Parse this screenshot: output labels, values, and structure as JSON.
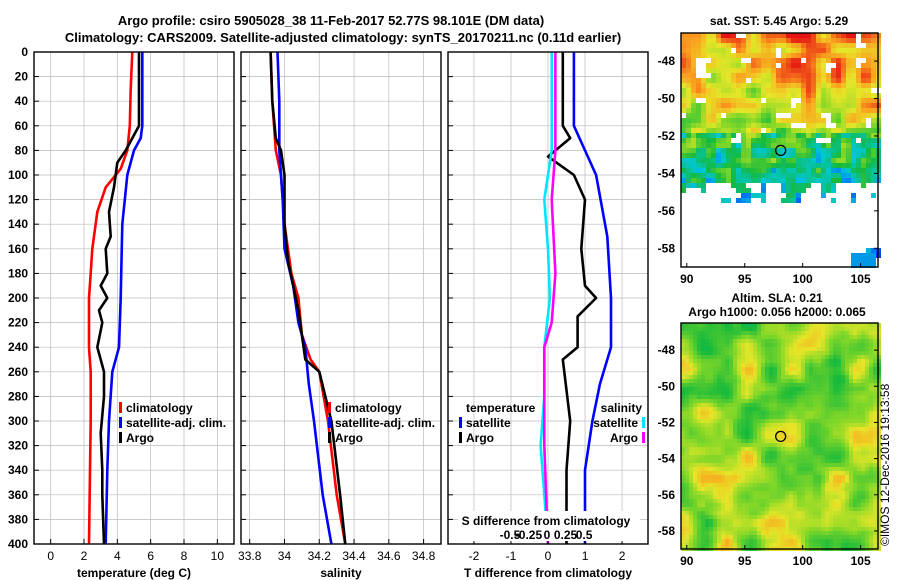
{
  "header": {
    "title_line1": "Argo profile: csiro 5905028_38 11-Feb-2017 52.77S 98.101E (DM data)",
    "title_line2": "Climatology: CARS2009. Satellite-adjusted climatology: synTS_20170211.nc (0.11d earlier)"
  },
  "colors": {
    "climatology": "#ff0000",
    "satellite": "#0000ff",
    "argo": "#000000",
    "salinity_diff": "#00e5ff",
    "temperature_diff": "#ff00ff"
  },
  "chart_data": [
    {
      "type": "line",
      "id": "temperature-panel",
      "xlabel": "temperature (deg C)",
      "xlim": [
        -1,
        11
      ],
      "xticks": [
        0,
        2,
        4,
        6,
        8,
        10
      ],
      "ylim": [
        0,
        400
      ],
      "yticks": [
        0,
        20,
        40,
        60,
        80,
        100,
        120,
        140,
        160,
        180,
        200,
        220,
        240,
        260,
        280,
        300,
        320,
        340,
        360,
        380,
        400
      ],
      "legend": [
        "climatology",
        "satellite-adj. clim.",
        "Argo"
      ],
      "series": [
        {
          "name": "climatology",
          "color": "climatology",
          "points": [
            [
              4.9,
              0
            ],
            [
              4.8,
              30
            ],
            [
              4.75,
              60
            ],
            [
              4.6,
              80
            ],
            [
              4.2,
              95
            ],
            [
              3.3,
              110
            ],
            [
              2.8,
              130
            ],
            [
              2.5,
              160
            ],
            [
              2.4,
              180
            ],
            [
              2.3,
              200
            ],
            [
              2.3,
              240
            ],
            [
              2.4,
              260
            ],
            [
              2.4,
              300
            ],
            [
              2.3,
              400
            ]
          ]
        },
        {
          "name": "satellite-adj. clim.",
          "color": "satellite",
          "points": [
            [
              5.5,
              0
            ],
            [
              5.5,
              60
            ],
            [
              5.4,
              70
            ],
            [
              5.0,
              80
            ],
            [
              4.6,
              100
            ],
            [
              4.3,
              140
            ],
            [
              4.2,
              200
            ],
            [
              4.1,
              240
            ],
            [
              3.7,
              260
            ],
            [
              3.5,
              300
            ],
            [
              3.4,
              340
            ],
            [
              3.3,
              400
            ]
          ]
        },
        {
          "name": "Argo",
          "color": "argo",
          "points": [
            [
              5.3,
              0
            ],
            [
              5.3,
              60
            ],
            [
              4.5,
              80
            ],
            [
              4.0,
              90
            ],
            [
              3.8,
              110
            ],
            [
              3.5,
              130
            ],
            [
              3.6,
              150
            ],
            [
              3.3,
              160
            ],
            [
              3.4,
              180
            ],
            [
              3.0,
              190
            ],
            [
              3.4,
              200
            ],
            [
              2.9,
              210
            ],
            [
              3.1,
              220
            ],
            [
              2.8,
              240
            ],
            [
              3.0,
              250
            ],
            [
              3.2,
              260
            ],
            [
              3.2,
              280
            ],
            [
              3.0,
              310
            ],
            [
              3.1,
              340
            ],
            [
              3.1,
              360
            ],
            [
              3.2,
              400
            ]
          ]
        }
      ]
    },
    {
      "type": "line",
      "id": "salinity-panel",
      "xlabel": "salinity",
      "xlim": [
        33.75,
        34.9
      ],
      "xticks": [
        33.8,
        34,
        34.2,
        34.4,
        34.6,
        34.8
      ],
      "ylim": [
        0,
        400
      ],
      "legend": [
        "climatology",
        "satellite-adj. clim.",
        "Argo"
      ],
      "series": [
        {
          "name": "climatology",
          "color": "climatology",
          "points": [
            [
              33.92,
              0
            ],
            [
              33.93,
              40
            ],
            [
              33.95,
              80
            ],
            [
              33.98,
              100
            ],
            [
              34.0,
              140
            ],
            [
              34.04,
              180
            ],
            [
              34.08,
              200
            ],
            [
              34.1,
              230
            ],
            [
              34.15,
              250
            ],
            [
              34.2,
              260
            ],
            [
              34.25,
              300
            ],
            [
              34.3,
              360
            ],
            [
              34.35,
              400
            ]
          ]
        },
        {
          "name": "satellite-adj. clim.",
          "color": "satellite",
          "points": [
            [
              33.96,
              0
            ],
            [
              33.97,
              40
            ],
            [
              33.97,
              80
            ],
            [
              33.99,
              120
            ],
            [
              34.0,
              160
            ],
            [
              34.05,
              190
            ],
            [
              34.08,
              220
            ],
            [
              34.12,
              240
            ],
            [
              34.14,
              270
            ],
            [
              34.17,
              300
            ],
            [
              34.22,
              360
            ],
            [
              34.27,
              400
            ]
          ]
        },
        {
          "name": "Argo",
          "color": "argo",
          "points": [
            [
              33.92,
              0
            ],
            [
              33.93,
              40
            ],
            [
              33.95,
              70
            ],
            [
              33.98,
              80
            ],
            [
              34.0,
              100
            ],
            [
              34.0,
              140
            ],
            [
              34.02,
              170
            ],
            [
              34.05,
              190
            ],
            [
              34.08,
              210
            ],
            [
              34.12,
              250
            ],
            [
              34.2,
              260
            ],
            [
              34.27,
              300
            ],
            [
              34.32,
              360
            ],
            [
              34.35,
              400
            ]
          ]
        }
      ]
    },
    {
      "type": "line",
      "id": "difference-panel",
      "xlabel": "T difference from climatology",
      "xlabel_top": "S difference from climatology",
      "xlim": [
        -2.7,
        2.7
      ],
      "xticks": [
        -2,
        -1,
        0,
        1,
        2
      ],
      "top_ticks": [
        "-0.5",
        "-0.25",
        "0",
        "0.25",
        "0.5"
      ],
      "ylim": [
        0,
        400
      ],
      "legend_left_title": "temperature",
      "legend_right_title": "salinity",
      "legend_left": [
        "satellite",
        "Argo"
      ],
      "legend_right": [
        "satellite",
        "Argo"
      ],
      "series": [
        {
          "name": "T satellite",
          "color": "satellite",
          "points": [
            [
              0.7,
              0
            ],
            [
              0.7,
              60
            ],
            [
              1.0,
              80
            ],
            [
              1.3,
              100
            ],
            [
              1.6,
              150
            ],
            [
              1.7,
              200
            ],
            [
              1.7,
              240
            ],
            [
              1.4,
              270
            ],
            [
              1.2,
              300
            ],
            [
              1.0,
              340
            ],
            [
              1.0,
              400
            ]
          ]
        },
        {
          "name": "T Argo",
          "color": "argo",
          "points": [
            [
              0.4,
              0
            ],
            [
              0.4,
              60
            ],
            [
              0.6,
              70
            ],
            [
              0.0,
              85
            ],
            [
              0.7,
              100
            ],
            [
              1.0,
              120
            ],
            [
              0.9,
              160
            ],
            [
              1.0,
              190
            ],
            [
              1.3,
              200
            ],
            [
              0.8,
              215
            ],
            [
              0.8,
              240
            ],
            [
              0.4,
              250
            ],
            [
              0.6,
              300
            ],
            [
              0.5,
              340
            ],
            [
              0.5,
              400
            ]
          ]
        },
        {
          "name": "T salinity-satellite",
          "color": "salinity_diff",
          "points": [
            [
              0.1,
              0
            ],
            [
              0.1,
              80
            ],
            [
              -0.1,
              120
            ],
            [
              0.0,
              160
            ],
            [
              0.05,
              200
            ],
            [
              -0.1,
              240
            ],
            [
              -0.1,
              280
            ],
            [
              -0.2,
              320
            ],
            [
              -0.1,
              360
            ],
            [
              0.0,
              400
            ]
          ]
        },
        {
          "name": "T salinity-Argo",
          "color": "temperature_diff",
          "points": [
            [
              0.2,
              0
            ],
            [
              0.2,
              80
            ],
            [
              0.1,
              120
            ],
            [
              0.2,
              180
            ],
            [
              0.1,
              220
            ],
            [
              -0.1,
              240
            ],
            [
              -0.1,
              280
            ],
            [
              -0.1,
              320
            ],
            [
              0.0,
              400
            ]
          ]
        }
      ]
    },
    {
      "type": "heatmap",
      "id": "sst-map",
      "title": "sat. SST: 5.45 Argo: 5.29",
      "xlim": [
        89.5,
        106.5
      ],
      "ylim": [
        -59,
        -46.5
      ],
      "xticks": [
        90,
        95,
        100,
        105
      ],
      "yticks": [
        -48,
        -50,
        -52,
        -54,
        -56,
        -58
      ],
      "marker": {
        "lon": 98.1,
        "lat": -52.77
      }
    },
    {
      "type": "heatmap",
      "id": "sla-map",
      "title_line1": "Altim. SLA: 0.21",
      "title_line2": "Argo h1000: 0.056 h2000: 0.065",
      "xlim": [
        89.5,
        106.5
      ],
      "ylim": [
        -59,
        -46.5
      ],
      "xticks": [
        90,
        95,
        100,
        105
      ],
      "yticks": [
        -48,
        -50,
        -52,
        -54,
        -56,
        -58
      ],
      "marker": {
        "lon": 98.1,
        "lat": -52.77
      }
    }
  ],
  "watermark": "©IMOS 12-Dec-2016 19:13:58"
}
